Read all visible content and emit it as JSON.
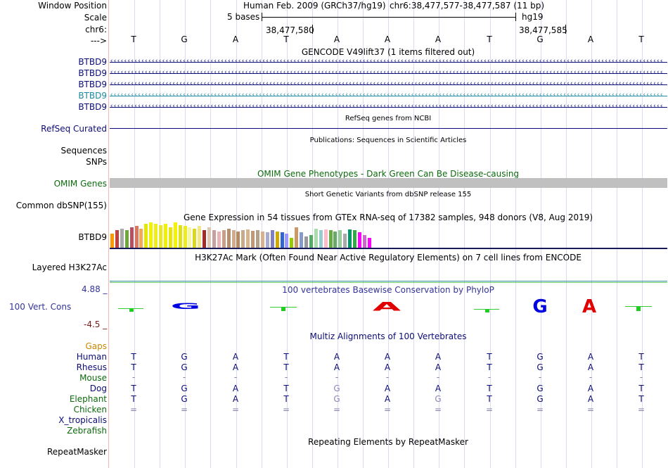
{
  "header": {
    "window_position_label": "Window Position",
    "assembly_text": "Human Feb. 2009 (GRCh37/hg19)",
    "position_text": "chr6:38,477,577-38,477,587 (11 bp)",
    "scale_label": "Scale",
    "scale_bases": "5 bases",
    "scale_db": "hg19",
    "chrom_label": "chr6:",
    "coord1": "38,477,580",
    "coord2": "38,477,585",
    "strand_label": "--->"
  },
  "sequence": [
    "T",
    "G",
    "A",
    "T",
    "A",
    "A",
    "A",
    "T",
    "G",
    "A",
    "T"
  ],
  "tracks": {
    "gencode_title": "GENCODE V49lift37 (1 items filtered out)",
    "gencode_genes": [
      {
        "label": "BTBD9",
        "color": "#0c0c78"
      },
      {
        "label": "BTBD9",
        "color": "#0c0c78"
      },
      {
        "label": "BTBD9",
        "color": "#0c0c78"
      },
      {
        "label": "BTBD9",
        "color": "#1a8aa0"
      },
      {
        "label": "BTBD9",
        "color": "#0c0c78"
      }
    ],
    "refseq_title": "RefSeq genes from NCBI",
    "refseq_label": "RefSeq Curated",
    "pubs_title": "Publications: Sequences in Scientific Articles",
    "sequences_label": "Sequences",
    "snps_label": "SNPs",
    "omim_title": "OMIM Gene Phenotypes - Dark Green Can Be Disease-causing",
    "omim_label": "OMIM Genes",
    "dbsnp_title": "Short Genetic Variants from dbSNP release 155",
    "dbsnp_label": "Common dbSNP(155)",
    "gtex_title": "Gene Expression in 54 tissues from GTEx RNA-seq of 17382 samples, 948 donors (V8, Aug 2019)",
    "gtex_label": "BTBD9",
    "h3k27_title": "H3K27Ac Mark (Often Found Near Active Regulatory Elements) on 7 cell lines from ENCODE",
    "h3k27_label": "Layered H3K27Ac",
    "cons_title": "100 vertebrates Basewise Conservation by PhyloP",
    "cons_label": "100 Vert. Cons",
    "cons_max": "4.88 _",
    "cons_min": "-4.5 _",
    "multiz_title": "Multiz Alignments of 100 Vertebrates",
    "gaps_label": "Gaps",
    "repeat_title": "Repeating Elements by RepeatMasker",
    "repeat_label": "RepeatMasker"
  },
  "gtex_values": [
    0.55,
    0.7,
    0.75,
    0.7,
    0.8,
    0.85,
    0.75,
    0.95,
    1.0,
    0.95,
    0.9,
    0.95,
    0.8,
    1.0,
    0.9,
    0.85,
    0.8,
    0.75,
    0.85,
    0.7,
    0.8,
    0.7,
    0.65,
    0.7,
    0.75,
    0.7,
    0.65,
    0.7,
    0.72,
    0.68,
    0.7,
    0.65,
    0.6,
    0.7,
    0.65,
    0.6,
    0.55,
    0.4,
    0.8,
    0.6,
    0.45,
    0.5,
    0.75,
    0.7,
    0.72,
    0.7,
    0.65,
    0.7,
    0.55,
    0.72,
    0.7,
    0.6,
    0.5,
    0.4
  ],
  "gtex_colors": [
    "#ff9900",
    "#c3413a",
    "#a8a8a8",
    "#6ea63c",
    "#b74e64",
    "#d9785d",
    "#f0a85d",
    "#e6e600",
    "#f2f200",
    "#eeee1a",
    "#e8e82a",
    "#f0f000",
    "#e6e60e",
    "#f4f400",
    "#e0e014",
    "#ecec22",
    "#f6f6a0",
    "#d8d820",
    "#f0e68c",
    "#a52a2a",
    "#dcc8b4",
    "#c9a0a0",
    "#e8b4b4",
    "#c8a088",
    "#b49070",
    "#d2aa8c",
    "#b48c64",
    "#c8aa8c",
    "#d7b48c",
    "#c09878",
    "#b4a088",
    "#d8b090",
    "#aaaacc",
    "#8080c0",
    "#ccaa00",
    "#3366cc",
    "#9999ff",
    "#99cc00",
    "#cc9966",
    "#8899cc",
    "#999999",
    "#55aa66",
    "#aaddaa",
    "#99cccc",
    "#ffbbcc",
    "#66aa44",
    "#66aa66",
    "#99cc99",
    "#aaaaaa",
    "#009966",
    "#33aa44",
    "#ff00ff",
    "#cc66cc",
    "#ff00ff"
  ],
  "multiz": {
    "species": [
      {
        "name": "Human",
        "color": "#0c0c78",
        "bases": [
          "T",
          "G",
          "A",
          "T",
          "A",
          "A",
          "A",
          "T",
          "G",
          "A",
          "T"
        ],
        "dim": []
      },
      {
        "name": "Rhesus",
        "color": "#0c0c78",
        "bases": [
          "T",
          "G",
          "A",
          "T",
          "A",
          "A",
          "A",
          "T",
          "G",
          "A",
          "T"
        ],
        "dim": []
      },
      {
        "name": "Mouse",
        "color": "#0d6b0d",
        "bases": [
          "-",
          "-",
          "-",
          "-",
          "-",
          "-",
          "-",
          "-",
          "-",
          "-",
          "-"
        ],
        "dim": []
      },
      {
        "name": "Dog",
        "color": "#0c0c78",
        "bases": [
          "T",
          "G",
          "A",
          "T",
          "G",
          "A",
          "A",
          "T",
          "G",
          "A",
          "T"
        ],
        "dim": [
          4
        ]
      },
      {
        "name": "Elephant",
        "color": "#0d6b0d",
        "bases": [
          "T",
          "G",
          "A",
          "T",
          "G",
          "A",
          "G",
          "T",
          "G",
          "A",
          "T"
        ],
        "dim": [
          4,
          6
        ]
      },
      {
        "name": "Chicken",
        "color": "#0d6b0d",
        "bases": [
          "=",
          "=",
          "=",
          "=",
          "=",
          "=",
          "=",
          "=",
          "=",
          "=",
          "="
        ],
        "dim": []
      },
      {
        "name": "X_tropicalis",
        "color": "#0c0c78",
        "bases": [],
        "dim": []
      },
      {
        "name": "Zebrafish",
        "color": "#0d6b0d",
        "bases": [],
        "dim": []
      }
    ]
  },
  "colors": {
    "gene_blue": "#0c0c78",
    "omim_green": "#0d6b0d",
    "gaps_orange": "#cc8800",
    "cons_blue": "#333399",
    "cons_red": "#7a1a1a",
    "logo_a": "#e00000",
    "logo_g": "#0000e0",
    "tick_green": "#33cc33"
  }
}
